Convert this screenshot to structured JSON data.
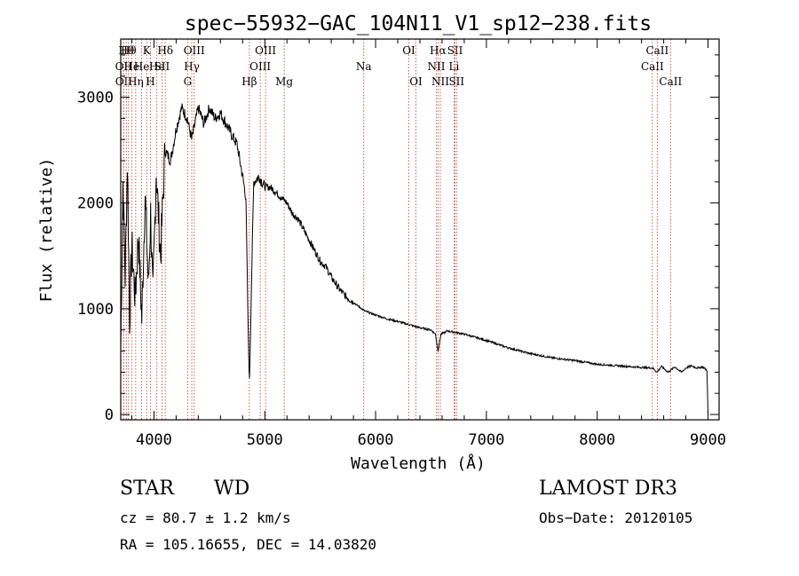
{
  "chart_data": {
    "type": "line",
    "title": "spec−55932−GAC_104N11_V1_sp12−238.fits",
    "xlabel": "Wavelength (Å)",
    "ylabel": "Flux (relative)",
    "xlim": [
      3700,
      9100
    ],
    "ylim": [
      -50,
      3550
    ],
    "xticks": [
      4000,
      5000,
      6000,
      7000,
      8000,
      9000
    ],
    "yticks": [
      0,
      1000,
      2000,
      3000
    ],
    "xtick_labels": [
      "4000",
      "5000",
      "6000",
      "7000",
      "8000",
      "9000"
    ],
    "ytick_labels": [
      "0",
      "1000",
      "2000",
      "3000"
    ],
    "series": [
      {
        "name": "flux",
        "x": [
          3700,
          3720,
          3740,
          3760,
          3780,
          3800,
          3830,
          3860,
          3890,
          3920,
          3950,
          3970,
          3990,
          4020,
          4060,
          4100,
          4150,
          4200,
          4250,
          4300,
          4340,
          4400,
          4450,
          4500,
          4550,
          4600,
          4650,
          4700,
          4750,
          4800,
          4830,
          4850,
          4862,
          4880,
          4900,
          4950,
          5000,
          5050,
          5100,
          5150,
          5200,
          5250,
          5300,
          5350,
          5400,
          5450,
          5500,
          5550,
          5600,
          5650,
          5700,
          5750,
          5800,
          5850,
          5900,
          5950,
          6000,
          6100,
          6200,
          6300,
          6400,
          6500,
          6540,
          6563,
          6590,
          6650,
          6700,
          6800,
          7000,
          7200,
          7400,
          7600,
          7800,
          8000,
          8200,
          8400,
          8500,
          8540,
          8580,
          8640,
          8700,
          8760,
          8800,
          8850,
          8900,
          8950,
          8990,
          9000
        ],
        "y": [
          600,
          2200,
          1300,
          2400,
          900,
          1600,
          1100,
          1700,
          900,
          2100,
          1200,
          1900,
          1100,
          2300,
          1500,
          2500,
          2400,
          2700,
          2900,
          2800,
          2600,
          2900,
          2750,
          2900,
          2800,
          2850,
          2750,
          2650,
          2550,
          2250,
          2050,
          800,
          300,
          1250,
          2200,
          2250,
          2150,
          2150,
          2100,
          2050,
          2000,
          1900,
          1850,
          1750,
          1650,
          1550,
          1450,
          1400,
          1300,
          1220,
          1150,
          1100,
          1060,
          1020,
          980,
          960,
          940,
          905,
          880,
          850,
          820,
          800,
          760,
          600,
          760,
          790,
          780,
          760,
          700,
          630,
          575,
          535,
          510,
          475,
          460,
          445,
          440,
          400,
          455,
          400,
          450,
          400,
          440,
          460,
          440,
          450,
          420,
          0
        ]
      }
    ],
    "line_markers": [
      {
        "wl": 3726,
        "label": "OII",
        "row": 1
      },
      {
        "wl": 3727,
        "label": "OII",
        "row": 2
      },
      {
        "wl": 3750,
        "label": "Hθ",
        "row": 0
      },
      {
        "wl": 3770,
        "label": "Hθ",
        "row": 0
      },
      {
        "wl": 3798,
        "label": "He",
        "row": 1
      },
      {
        "wl": 3835,
        "label": "Hη",
        "row": 2
      },
      {
        "wl": 3889,
        "label": "He",
        "row": 1
      },
      {
        "wl": 3934,
        "label": "K",
        "row": 0
      },
      {
        "wl": 3968,
        "label": "H",
        "row": 2
      },
      {
        "wl": 4026,
        "label": "He",
        "row": 1
      },
      {
        "wl": 4072,
        "label": "SII",
        "row": 1
      },
      {
        "wl": 4102,
        "label": "Hδ",
        "row": 0
      },
      {
        "wl": 4304,
        "label": "G",
        "row": 2
      },
      {
        "wl": 4341,
        "label": "Hγ",
        "row": 1
      },
      {
        "wl": 4363,
        "label": "OIII",
        "row": 0
      },
      {
        "wl": 4861,
        "label": "Hβ",
        "row": 2
      },
      {
        "wl": 4959,
        "label": "OIII",
        "row": 1
      },
      {
        "wl": 5007,
        "label": "OIII",
        "row": 0
      },
      {
        "wl": 5175,
        "label": "Mg",
        "row": 2
      },
      {
        "wl": 5893,
        "label": "Na",
        "row": 1
      },
      {
        "wl": 6300,
        "label": "OI",
        "row": 0
      },
      {
        "wl": 6364,
        "label": "OI",
        "row": 2
      },
      {
        "wl": 6548,
        "label": "NII",
        "row": 1
      },
      {
        "wl": 6563,
        "label": "Hα",
        "row": 0
      },
      {
        "wl": 6584,
        "label": "NII",
        "row": 2
      },
      {
        "wl": 6708,
        "label": "Li",
        "row": 1
      },
      {
        "wl": 6717,
        "label": "SII",
        "row": 0
      },
      {
        "wl": 6731,
        "label": "SII",
        "row": 2
      },
      {
        "wl": 8498,
        "label": "CaII",
        "row": 1
      },
      {
        "wl": 8542,
        "label": "CaII",
        "row": 0
      },
      {
        "wl": 8662,
        "label": "CaII",
        "row": 2
      }
    ]
  },
  "info": {
    "class_label": "STAR",
    "subclass": "WD",
    "survey": "LAMOST DR3",
    "cz": "cz = 80.7 ± 1.2 km/s",
    "obs_date": "Obs−Date: 20120105",
    "coords": "RA = 105.16655, DEC =  14.03820"
  }
}
